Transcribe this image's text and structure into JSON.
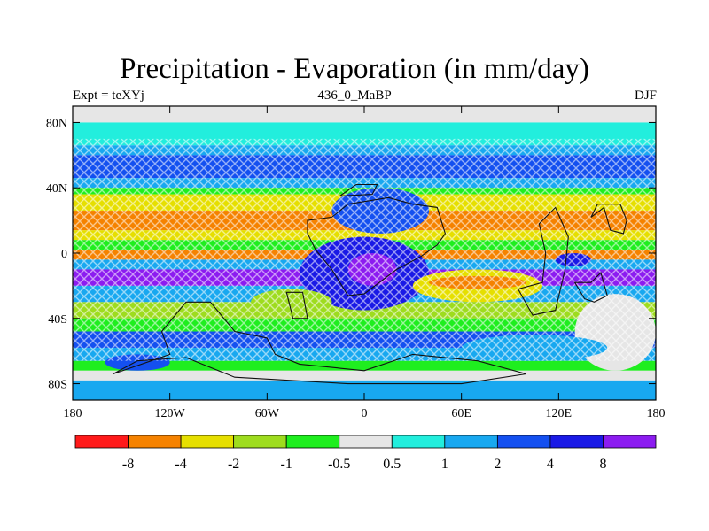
{
  "title": "Precipitation - Evaporation (in mm/day)",
  "subtitle_left": "Expt = teXYj",
  "subtitle_center": "436_0_MaBP",
  "subtitle_right": "DJF",
  "lat_ticks": [
    {
      "value": 80,
      "label": "80N"
    },
    {
      "value": 40,
      "label": "40N"
    },
    {
      "value": 0,
      "label": "0"
    },
    {
      "value": -40,
      "label": "40S"
    },
    {
      "value": -80,
      "label": "80S"
    }
  ],
  "lon_ticks": [
    {
      "value": -180,
      "label": "180"
    },
    {
      "value": -120,
      "label": "120W"
    },
    {
      "value": -60,
      "label": "60W"
    },
    {
      "value": 0,
      "label": "0"
    },
    {
      "value": 60,
      "label": "60E"
    },
    {
      "value": 120,
      "label": "120E"
    },
    {
      "value": 180,
      "label": "180"
    }
  ],
  "map_extent": {
    "lon": [
      -180,
      180
    ],
    "lat": [
      -90,
      90
    ]
  },
  "colorbar": {
    "colors": [
      "#ff1a1a",
      "#f58200",
      "#e6df00",
      "#9edc1e",
      "#1fee1f",
      "#e6e6e6",
      "#22eedd",
      "#18a8f0",
      "#1450f0",
      "#1a1ae6",
      "#8c1cf0"
    ],
    "labels": [
      "-8",
      "-4",
      "-2",
      "-1",
      "-0.5",
      "0.5",
      "1",
      "2",
      "4",
      "8"
    ]
  },
  "field_bands": [
    {
      "lat": [
        90,
        80
      ],
      "color": "#e6e6e6"
    },
    {
      "lat": [
        80,
        66
      ],
      "color": "#22eedd"
    },
    {
      "lat": [
        66,
        60
      ],
      "color": "#18a8f0"
    },
    {
      "lat": [
        60,
        46
      ],
      "color": "#1450f0"
    },
    {
      "lat": [
        46,
        40
      ],
      "color": "#18a8f0"
    },
    {
      "lat": [
        40,
        36
      ],
      "color": "#1fee1f"
    },
    {
      "lat": [
        36,
        26
      ],
      "color": "#e6df00"
    },
    {
      "lat": [
        26,
        14
      ],
      "color": "#f58200"
    },
    {
      "lat": [
        14,
        8
      ],
      "color": "#e6df00"
    },
    {
      "lat": [
        8,
        2
      ],
      "color": "#1fee1f"
    },
    {
      "lat": [
        2,
        -4
      ],
      "color": "#f58200"
    },
    {
      "lat": [
        -4,
        -10
      ],
      "color": "#18a8f0"
    },
    {
      "lat": [
        -10,
        -20
      ],
      "color": "#8c1cf0"
    },
    {
      "lat": [
        -20,
        -30
      ],
      "color": "#18a8f0"
    },
    {
      "lat": [
        -30,
        -40
      ],
      "color": "#9edc1e"
    },
    {
      "lat": [
        -40,
        -48
      ],
      "color": "#1fee1f"
    },
    {
      "lat": [
        -48,
        -58
      ],
      "color": "#1450f0"
    },
    {
      "lat": [
        -58,
        -66
      ],
      "color": "#18a8f0"
    },
    {
      "lat": [
        -66,
        -72
      ],
      "color": "#1fee1f"
    },
    {
      "lat": [
        -72,
        -78
      ],
      "color": "#e6e6e6"
    },
    {
      "lat": [
        -78,
        -90
      ],
      "color": "#18a8f0"
    }
  ],
  "field_patches": [
    {
      "lon": [
        -40,
        40
      ],
      "lat": [
        10,
        -35
      ],
      "color": "#1a1ae6"
    },
    {
      "lon": [
        -10,
        20
      ],
      "lat": [
        0,
        -20
      ],
      "color": "#8c1cf0"
    },
    {
      "lon": [
        -70,
        -20
      ],
      "lat": [
        -22,
        -38
      ],
      "color": "#9edc1e"
    },
    {
      "lon": [
        30,
        110
      ],
      "lat": [
        -10,
        -30
      ],
      "color": "#e6df00"
    },
    {
      "lon": [
        40,
        100
      ],
      "lat": [
        -14,
        -22
      ],
      "color": "#f58200"
    },
    {
      "lon": [
        130,
        180
      ],
      "lat": [
        -25,
        -72
      ],
      "color": "#e6e6e6"
    },
    {
      "lon": [
        118,
        140
      ],
      "lat": [
        0,
        -8
      ],
      "color": "#1a1ae6"
    },
    {
      "lon": [
        -20,
        40
      ],
      "lat": [
        40,
        12
      ],
      "color": "#1450f0"
    },
    {
      "lon": [
        -160,
        -120
      ],
      "lat": [
        -62,
        -72
      ],
      "color": "#1450f0"
    },
    {
      "lon": [
        60,
        150
      ],
      "lat": [
        -50,
        -66
      ],
      "color": "#18a8f0"
    }
  ],
  "land_outlines": [
    {
      "points": [
        [
          -35,
          20
        ],
        [
          -20,
          22
        ],
        [
          -10,
          30
        ],
        [
          15,
          34
        ],
        [
          30,
          30
        ],
        [
          45,
          28
        ],
        [
          50,
          12
        ],
        [
          45,
          5
        ],
        [
          35,
          -2
        ],
        [
          20,
          -10
        ],
        [
          0,
          -25
        ],
        [
          -10,
          -26
        ],
        [
          -20,
          -10
        ],
        [
          -30,
          2
        ],
        [
          -35,
          12
        ]
      ]
    },
    {
      "points": [
        [
          -15,
          35
        ],
        [
          5,
          36
        ],
        [
          8,
          42
        ],
        [
          -5,
          42
        ]
      ]
    },
    {
      "points": [
        [
          -48,
          -24
        ],
        [
          -38,
          -24
        ],
        [
          -35,
          -40
        ],
        [
          -44,
          -40
        ]
      ]
    },
    {
      "points": [
        [
          -110,
          -30
        ],
        [
          -95,
          -30
        ],
        [
          -80,
          -48
        ],
        [
          -60,
          -52
        ],
        [
          -55,
          -62
        ],
        [
          -40,
          -68
        ],
        [
          0,
          -72
        ],
        [
          30,
          -62
        ],
        [
          70,
          -66
        ],
        [
          100,
          -74
        ],
        [
          60,
          -80
        ],
        [
          -10,
          -80
        ],
        [
          -80,
          -76
        ],
        [
          -110,
          -64
        ],
        [
          -140,
          -66
        ],
        [
          -155,
          -74
        ],
        [
          -120,
          -62
        ],
        [
          -125,
          -48
        ]
      ]
    },
    {
      "points": [
        [
          95,
          -22
        ],
        [
          110,
          -18
        ],
        [
          112,
          0
        ],
        [
          108,
          18
        ],
        [
          118,
          28
        ],
        [
          126,
          10
        ],
        [
          124,
          -10
        ],
        [
          118,
          -35
        ],
        [
          104,
          -38
        ]
      ]
    },
    {
      "points": [
        [
          140,
          22
        ],
        [
          148,
          28
        ],
        [
          152,
          14
        ],
        [
          160,
          12
        ],
        [
          162,
          20
        ],
        [
          158,
          30
        ],
        [
          144,
          30
        ]
      ]
    },
    {
      "points": [
        [
          130,
          -18
        ],
        [
          140,
          -18
        ],
        [
          146,
          -12
        ],
        [
          150,
          -26
        ],
        [
          142,
          -30
        ],
        [
          136,
          -28
        ]
      ]
    }
  ]
}
